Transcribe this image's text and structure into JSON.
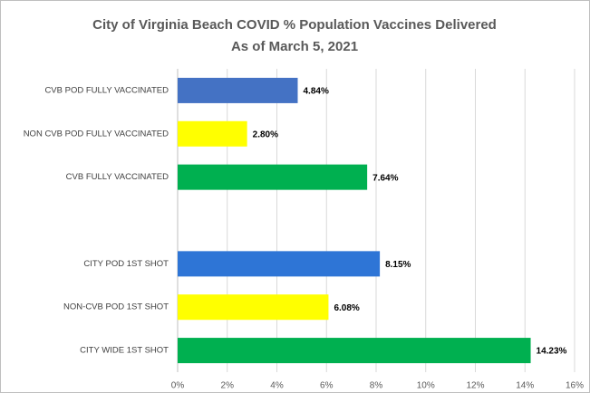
{
  "chart_data": {
    "type": "bar",
    "orientation": "horizontal",
    "title": "City of Virginia Beach COVID % Population Vaccines Delivered",
    "subtitle": "As of March 5, 2021",
    "categories": [
      "CVB POD FULLY VACCINATED",
      "NON CVB POD FULLY VACCINATED",
      "CVB FULLY VACCINATED",
      null,
      "CITY POD 1ST SHOT",
      "NON-CVB POD 1ST SHOT",
      "CITY WIDE 1ST SHOT"
    ],
    "values": [
      4.84,
      2.8,
      7.64,
      null,
      8.15,
      6.08,
      14.23
    ],
    "value_labels": [
      "4.84%",
      "2.80%",
      "7.64%",
      null,
      "8.15%",
      "6.08%",
      "14.23%"
    ],
    "colors": [
      "#4472c4",
      "#ffff00",
      "#00b050",
      null,
      "#2e75d6",
      "#ffff00",
      "#00b050"
    ],
    "xlim": [
      0,
      16
    ],
    "xticks": [
      {
        "value": 0,
        "label": "0%"
      },
      {
        "value": 2,
        "label": "2%"
      },
      {
        "value": 4,
        "label": "4%"
      },
      {
        "value": 6,
        "label": "6%"
      },
      {
        "value": 8,
        "label": "8%"
      },
      {
        "value": 10,
        "label": "10%"
      },
      {
        "value": 12,
        "label": "12%"
      },
      {
        "value": 14,
        "label": "14%"
      },
      {
        "value": 16,
        "label": "16%"
      }
    ],
    "grid": true
  }
}
